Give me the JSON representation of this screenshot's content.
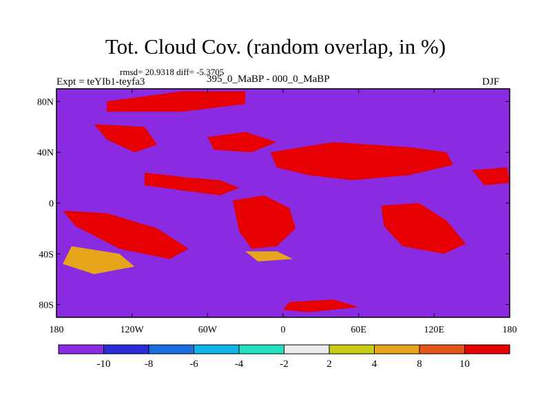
{
  "header": {
    "title": "Tot. Cloud Cov. (random overlap, in %)",
    "stats": "rmsd= 20.9318 diff= -5.3705",
    "experiment": "Expt = teYIb1-teyfa3",
    "period": "395_0_MaBP - 000_0_MaBP",
    "season": "DJF"
  },
  "chart_data": {
    "type": "heatmap",
    "title": "Tot. Cloud Cov. (random overlap, in %)",
    "subtitle": "395_0_MaBP - 000_0_MaBP",
    "xlabel": "",
    "ylabel": "",
    "xlim": [
      -180,
      180
    ],
    "ylim": [
      -90,
      90
    ],
    "x_ticks": [
      {
        "value": -180,
        "label": "180"
      },
      {
        "value": -120,
        "label": "120W"
      },
      {
        "value": -60,
        "label": "60W"
      },
      {
        "value": 0,
        "label": "0"
      },
      {
        "value": 60,
        "label": "60E"
      },
      {
        "value": 120,
        "label": "120E"
      },
      {
        "value": 180,
        "label": "180"
      }
    ],
    "y_ticks": [
      {
        "value": 80,
        "label": "80N"
      },
      {
        "value": 40,
        "label": "40N"
      },
      {
        "value": 0,
        "label": "0"
      },
      {
        "value": -40,
        "label": "40S"
      },
      {
        "value": -80,
        "label": "80S"
      }
    ],
    "colorbar": {
      "levels": [
        "-10",
        "-8",
        "-6",
        "-4",
        "-2",
        "2",
        "4",
        "8",
        "10"
      ],
      "colors": [
        "#8a2be2",
        "#2a2ad9",
        "#1c6fe0",
        "#0fb4e6",
        "#22e0c0",
        "#ececec",
        "#c8cc12",
        "#e6a51a",
        "#e6561a",
        "#e60000"
      ]
    },
    "regions": [
      {
        "name": "arctic-band",
        "bin": 9,
        "poly": [
          [
            -140,
            80
          ],
          [
            -80,
            88
          ],
          [
            -30,
            88
          ],
          [
            -30,
            78
          ],
          [
            -80,
            72
          ],
          [
            -140,
            72
          ]
        ]
      },
      {
        "name": "north-america-warm",
        "bin": 9,
        "poly": [
          [
            -150,
            62
          ],
          [
            -110,
            60
          ],
          [
            -100,
            46
          ],
          [
            -118,
            40
          ],
          [
            -140,
            50
          ]
        ]
      },
      {
        "name": "north-atlantic-warm",
        "bin": 9,
        "poly": [
          [
            -60,
            52
          ],
          [
            -30,
            56
          ],
          [
            -5,
            48
          ],
          [
            -25,
            40
          ],
          [
            -55,
            42
          ]
        ]
      },
      {
        "name": "eurasia-warm",
        "bin": 9,
        "poly": [
          [
            -10,
            40
          ],
          [
            40,
            48
          ],
          [
            100,
            44
          ],
          [
            130,
            40
          ],
          [
            135,
            30
          ],
          [
            100,
            22
          ],
          [
            55,
            18
          ],
          [
            20,
            22
          ],
          [
            -5,
            28
          ]
        ]
      },
      {
        "name": "tropical-atlantic-warm",
        "bin": 9,
        "poly": [
          [
            -110,
            24
          ],
          [
            -75,
            20
          ],
          [
            -50,
            18
          ],
          [
            -35,
            12
          ],
          [
            -50,
            6
          ],
          [
            -80,
            10
          ],
          [
            -110,
            14
          ]
        ]
      },
      {
        "name": "south-pacific-warm",
        "bin": 9,
        "poly": [
          [
            -175,
            -6
          ],
          [
            -140,
            -8
          ],
          [
            -100,
            -20
          ],
          [
            -75,
            -36
          ],
          [
            -90,
            -44
          ],
          [
            -130,
            -36
          ],
          [
            -165,
            -18
          ]
        ]
      },
      {
        "name": "south-america-africa-warm",
        "bin": 9,
        "poly": [
          [
            -40,
            2
          ],
          [
            -15,
            6
          ],
          [
            5,
            -4
          ],
          [
            10,
            -20
          ],
          [
            -5,
            -34
          ],
          [
            -25,
            -36
          ],
          [
            -35,
            -22
          ]
        ]
      },
      {
        "name": "indian-ocean-warm",
        "bin": 9,
        "poly": [
          [
            78,
            -2
          ],
          [
            108,
            0
          ],
          [
            130,
            -14
          ],
          [
            145,
            -32
          ],
          [
            128,
            -40
          ],
          [
            95,
            -34
          ],
          [
            80,
            -18
          ]
        ]
      },
      {
        "name": "far-east-pacific-warm",
        "bin": 9,
        "poly": [
          [
            150,
            26
          ],
          [
            178,
            28
          ],
          [
            180,
            16
          ],
          [
            160,
            14
          ]
        ]
      },
      {
        "name": "southern-band-warm",
        "bin": 9,
        "poly": [
          [
            5,
            -78
          ],
          [
            40,
            -76
          ],
          [
            60,
            -82
          ],
          [
            20,
            -86
          ],
          [
            0,
            -84
          ]
        ]
      },
      {
        "name": "south-pacific-orange",
        "bin": 7,
        "poly": [
          [
            -168,
            -34
          ],
          [
            -130,
            -40
          ],
          [
            -118,
            -50
          ],
          [
            -150,
            -56
          ],
          [
            -175,
            -48
          ]
        ]
      },
      {
        "name": "atlantic-margin-orange",
        "bin": 7,
        "poly": [
          [
            -30,
            -38
          ],
          [
            -5,
            -38
          ],
          [
            8,
            -44
          ],
          [
            -20,
            -46
          ]
        ]
      }
    ]
  }
}
